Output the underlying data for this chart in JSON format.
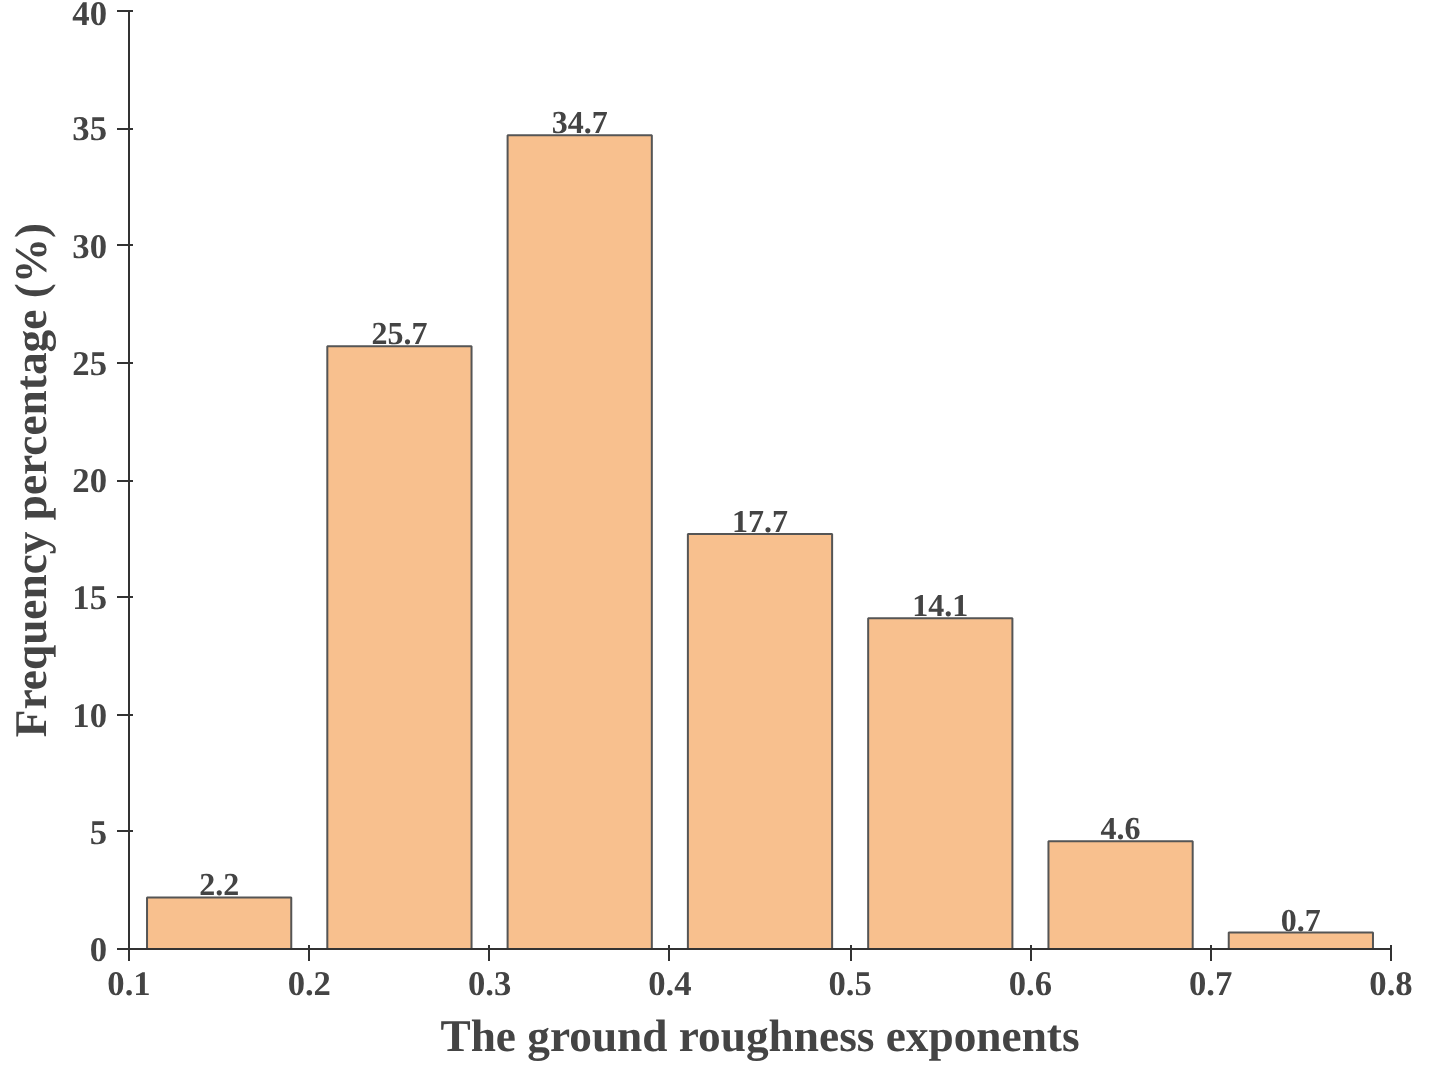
{
  "chart_data": {
    "type": "histogram",
    "xlabel": "The ground roughness exponents",
    "ylabel": "Frequency percentage (%)",
    "bins": [
      0.1,
      0.2,
      0.3,
      0.4,
      0.5,
      0.6,
      0.7,
      0.8
    ],
    "values": [
      2.2,
      25.7,
      34.7,
      17.7,
      14.1,
      4.6,
      0.7
    ],
    "color": "#f8c08e",
    "data_labels": true,
    "grid": false,
    "xlim": [
      0.1,
      0.8
    ],
    "xticks": [
      0.1,
      0.2,
      0.3,
      0.4,
      0.5,
      0.6,
      0.7,
      0.8
    ],
    "ylim": [
      0,
      40
    ],
    "yticks": [
      0,
      5,
      10,
      15,
      20,
      25,
      30,
      35,
      40
    ]
  }
}
